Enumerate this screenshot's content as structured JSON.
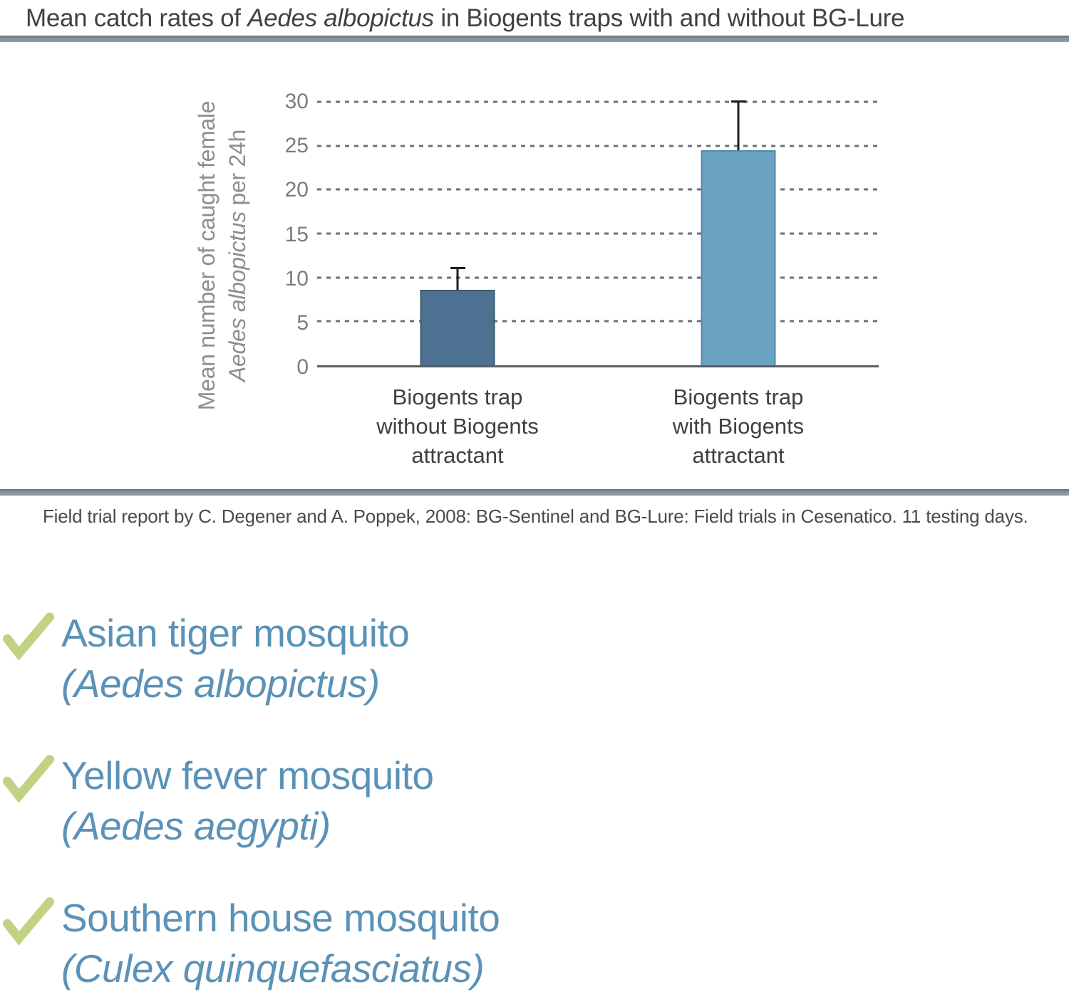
{
  "header": {
    "title_prefix": "Mean catch rates of ",
    "title_italic": "Aedes albopictus",
    "title_suffix": " in Biogents traps with and without BG-Lure"
  },
  "chart_data": {
    "type": "bar",
    "title": "Mean catch rates of Aedes albopictus in Biogents traps with and without BG-Lure",
    "categories": [
      "Biogents trap\nwithout Biogents\nattractant",
      "Biogents trap\nwith Biogents\nattractant"
    ],
    "values": [
      8.6,
      24.5
    ],
    "errors_upper": [
      2.6,
      5.7
    ],
    "bar_colors": [
      "#4d7191",
      "#6ba3c2"
    ],
    "bar_border_colors": [
      "#3c5a72",
      "#5689a8"
    ],
    "ylabel_line1": "Mean number of caught female",
    "ylabel_line2_italic": "Aedes albopictus",
    "ylabel_line2_rest": " per 24h",
    "xlabel": "",
    "yticks": [
      0,
      5,
      10,
      15,
      20,
      25,
      30
    ],
    "ylim": [
      0,
      30
    ],
    "grid": "horizontal-dashed",
    "legend": "none"
  },
  "source": {
    "text": "Field trial report by C. Degener and A. Poppek, 2008: BG-Sentinel and BG-Lure: Field trials in Cesenatico. 11 testing days."
  },
  "species_list": {
    "check_color": "#c1d282",
    "text_color": "#5b92b7",
    "items": [
      {
        "common_name": "Asian tiger mosquito",
        "latin_name": "(Aedes albopictus)"
      },
      {
        "common_name": "Yellow fever mosquito",
        "latin_name": "(Aedes aegypti)"
      },
      {
        "common_name": "Southern house mosquito",
        "latin_name": "(Culex quinquefasciatus)"
      }
    ]
  },
  "colors": {
    "divider": "#8494a1",
    "title_text": "#3f4245",
    "axis_text": "#7c7c7c",
    "gridline": "#68727a",
    "error_bar": "#1e1e1e"
  }
}
